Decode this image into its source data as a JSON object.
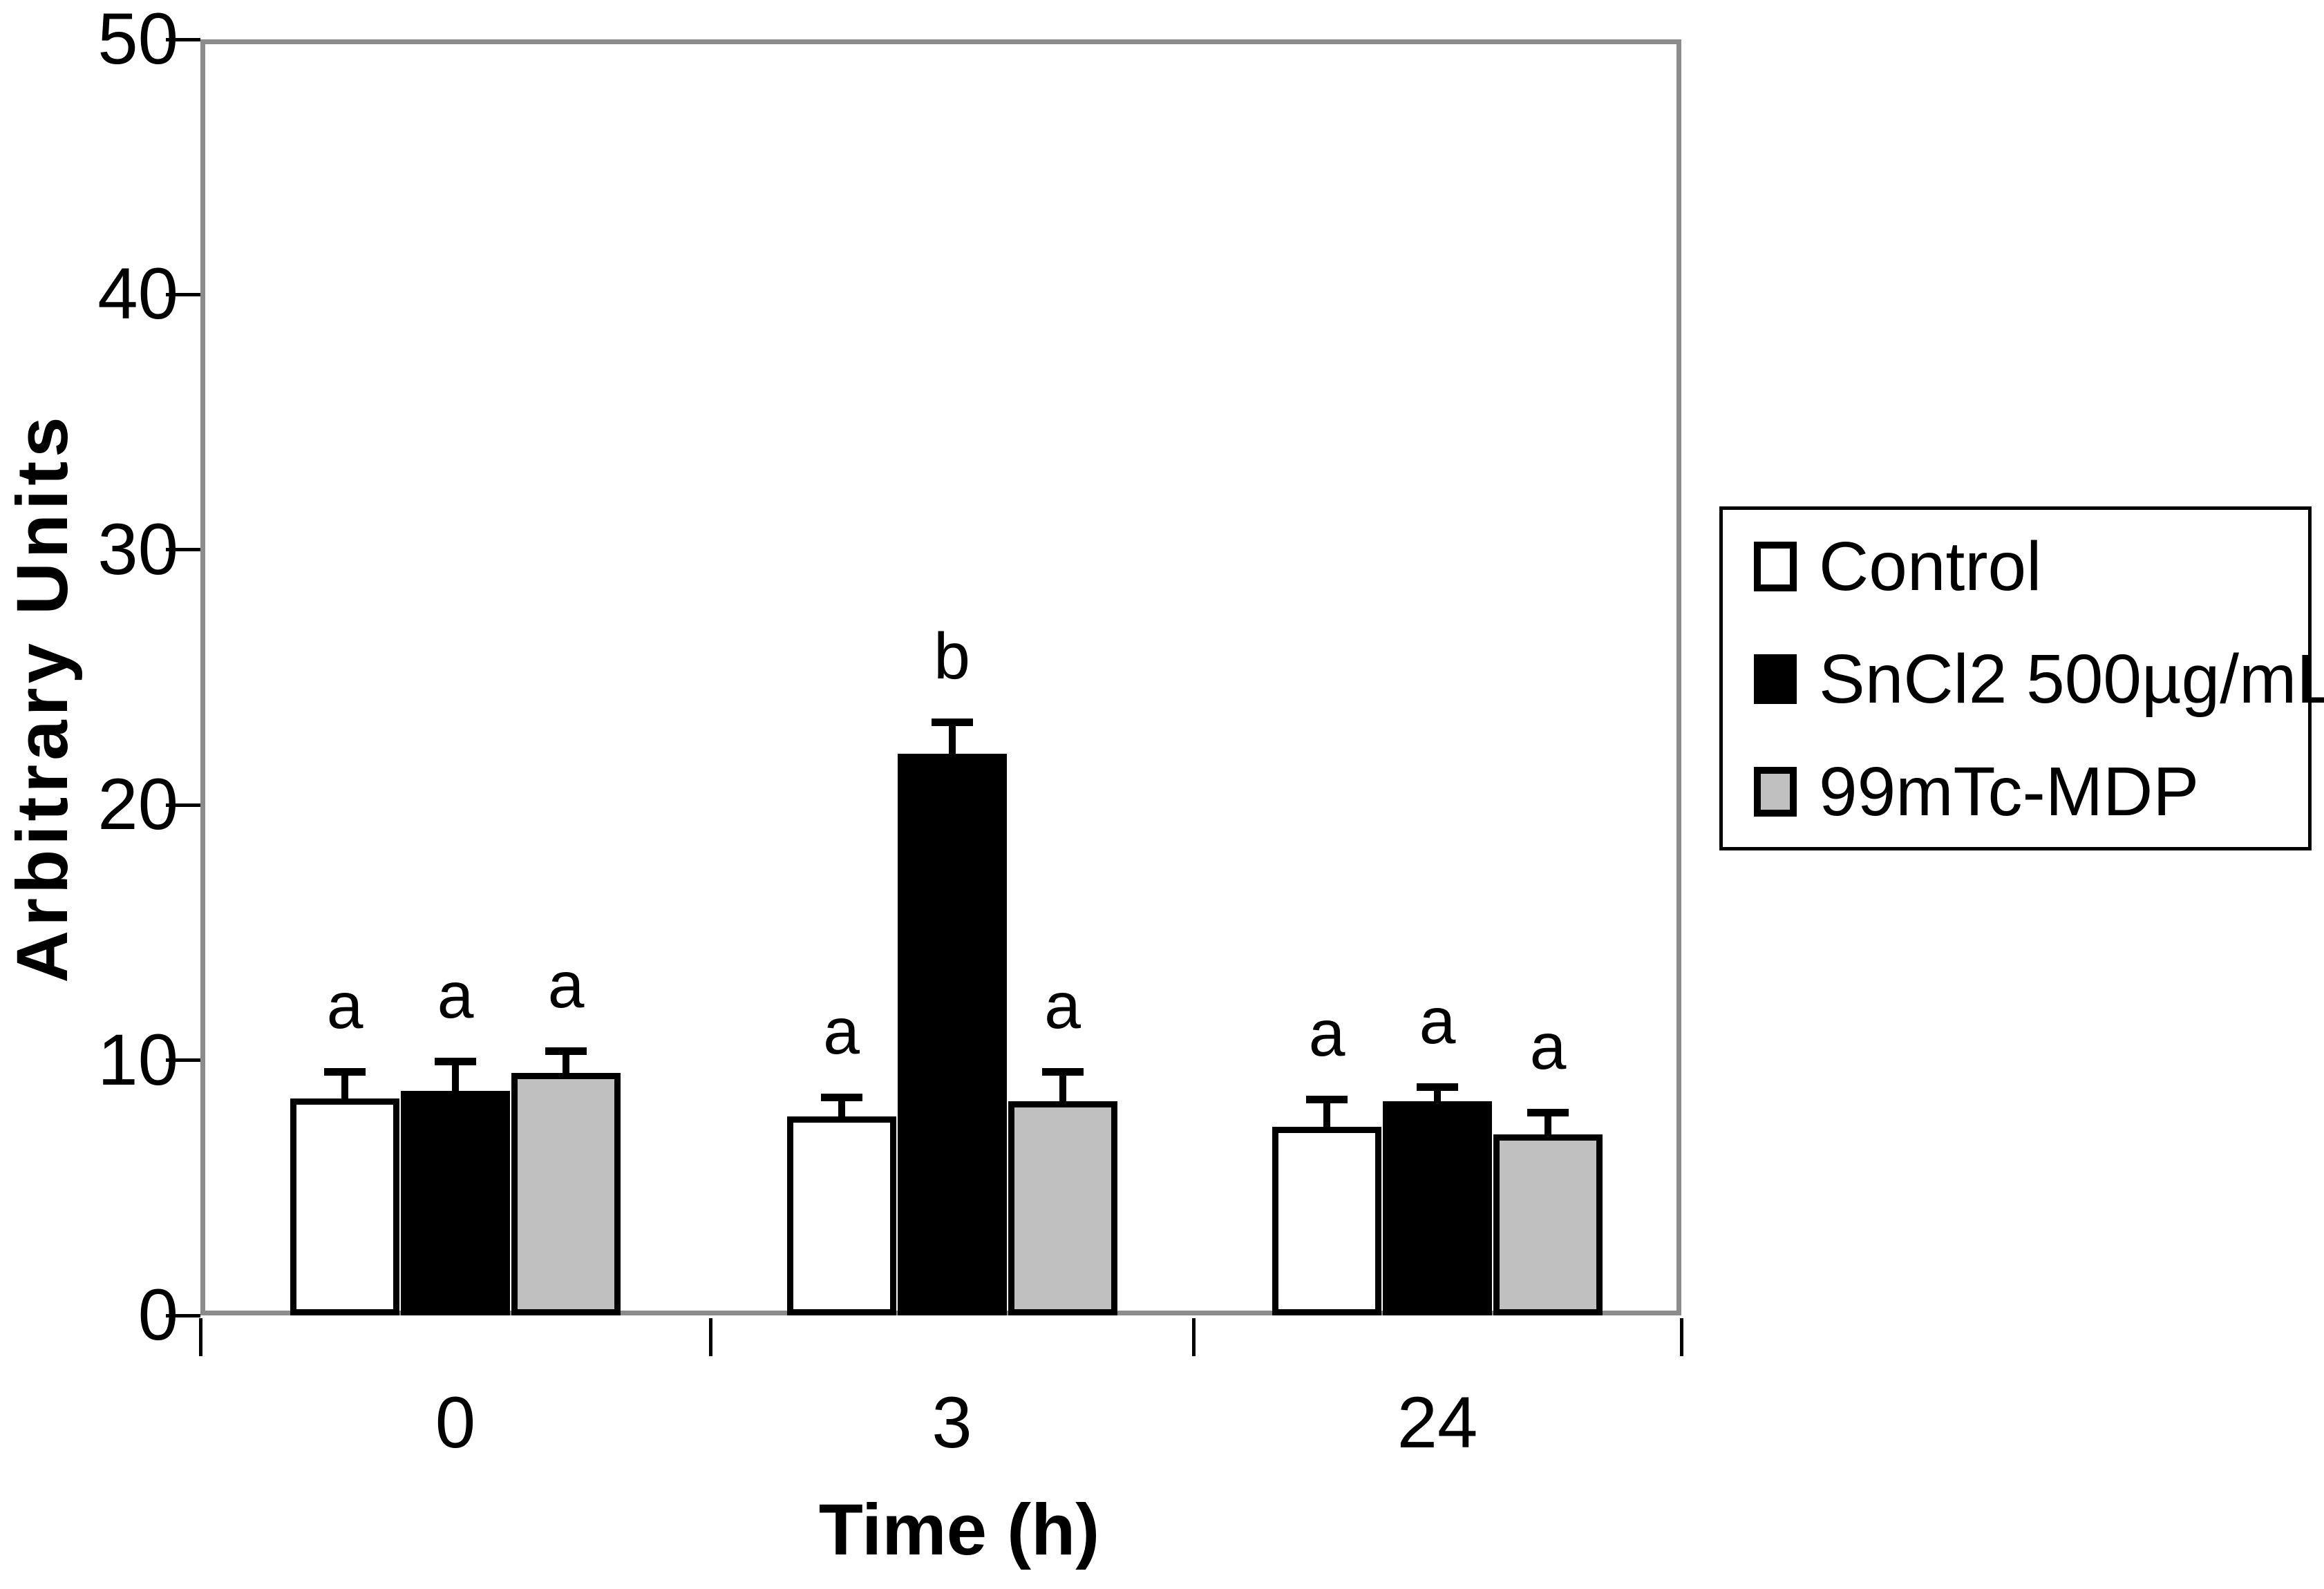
{
  "figure": {
    "background": "#ffffff"
  },
  "colors": {
    "axis_frame": "#8c8c8c",
    "bar_border": "#000000",
    "error_bar": "#000000",
    "text": "#000000",
    "legend_border": "#000000"
  },
  "chart_data": {
    "type": "bar",
    "title": "",
    "xlabel": "Time (h)",
    "ylabel": "Arbitrary Units",
    "ylim": [
      0,
      50
    ],
    "y_ticks": [
      0,
      10,
      20,
      30,
      40,
      50
    ],
    "grid": false,
    "error_bars": "upper",
    "legend_position": "right",
    "categories": [
      "0",
      "3",
      "24"
    ],
    "series": [
      {
        "name": "Control",
        "color": "#ffffff",
        "values": [
          8.5,
          7.8,
          7.4
        ],
        "errors": [
          1.2,
          0.9,
          1.2
        ],
        "sig_letters": [
          "a",
          "a",
          "a"
        ]
      },
      {
        "name": "SnCl2 500µg/mL",
        "color": "#000000",
        "values": [
          8.8,
          22.0,
          8.4
        ],
        "errors": [
          1.3,
          1.4,
          0.7
        ],
        "sig_letters": [
          "a",
          "b",
          "a"
        ]
      },
      {
        "name": "99mTc-MDP",
        "color": "#c0c0c0",
        "values": [
          9.5,
          8.4,
          7.1
        ],
        "errors": [
          1.0,
          1.3,
          1.0
        ],
        "sig_letters": [
          "a",
          "a",
          "a"
        ]
      }
    ]
  }
}
